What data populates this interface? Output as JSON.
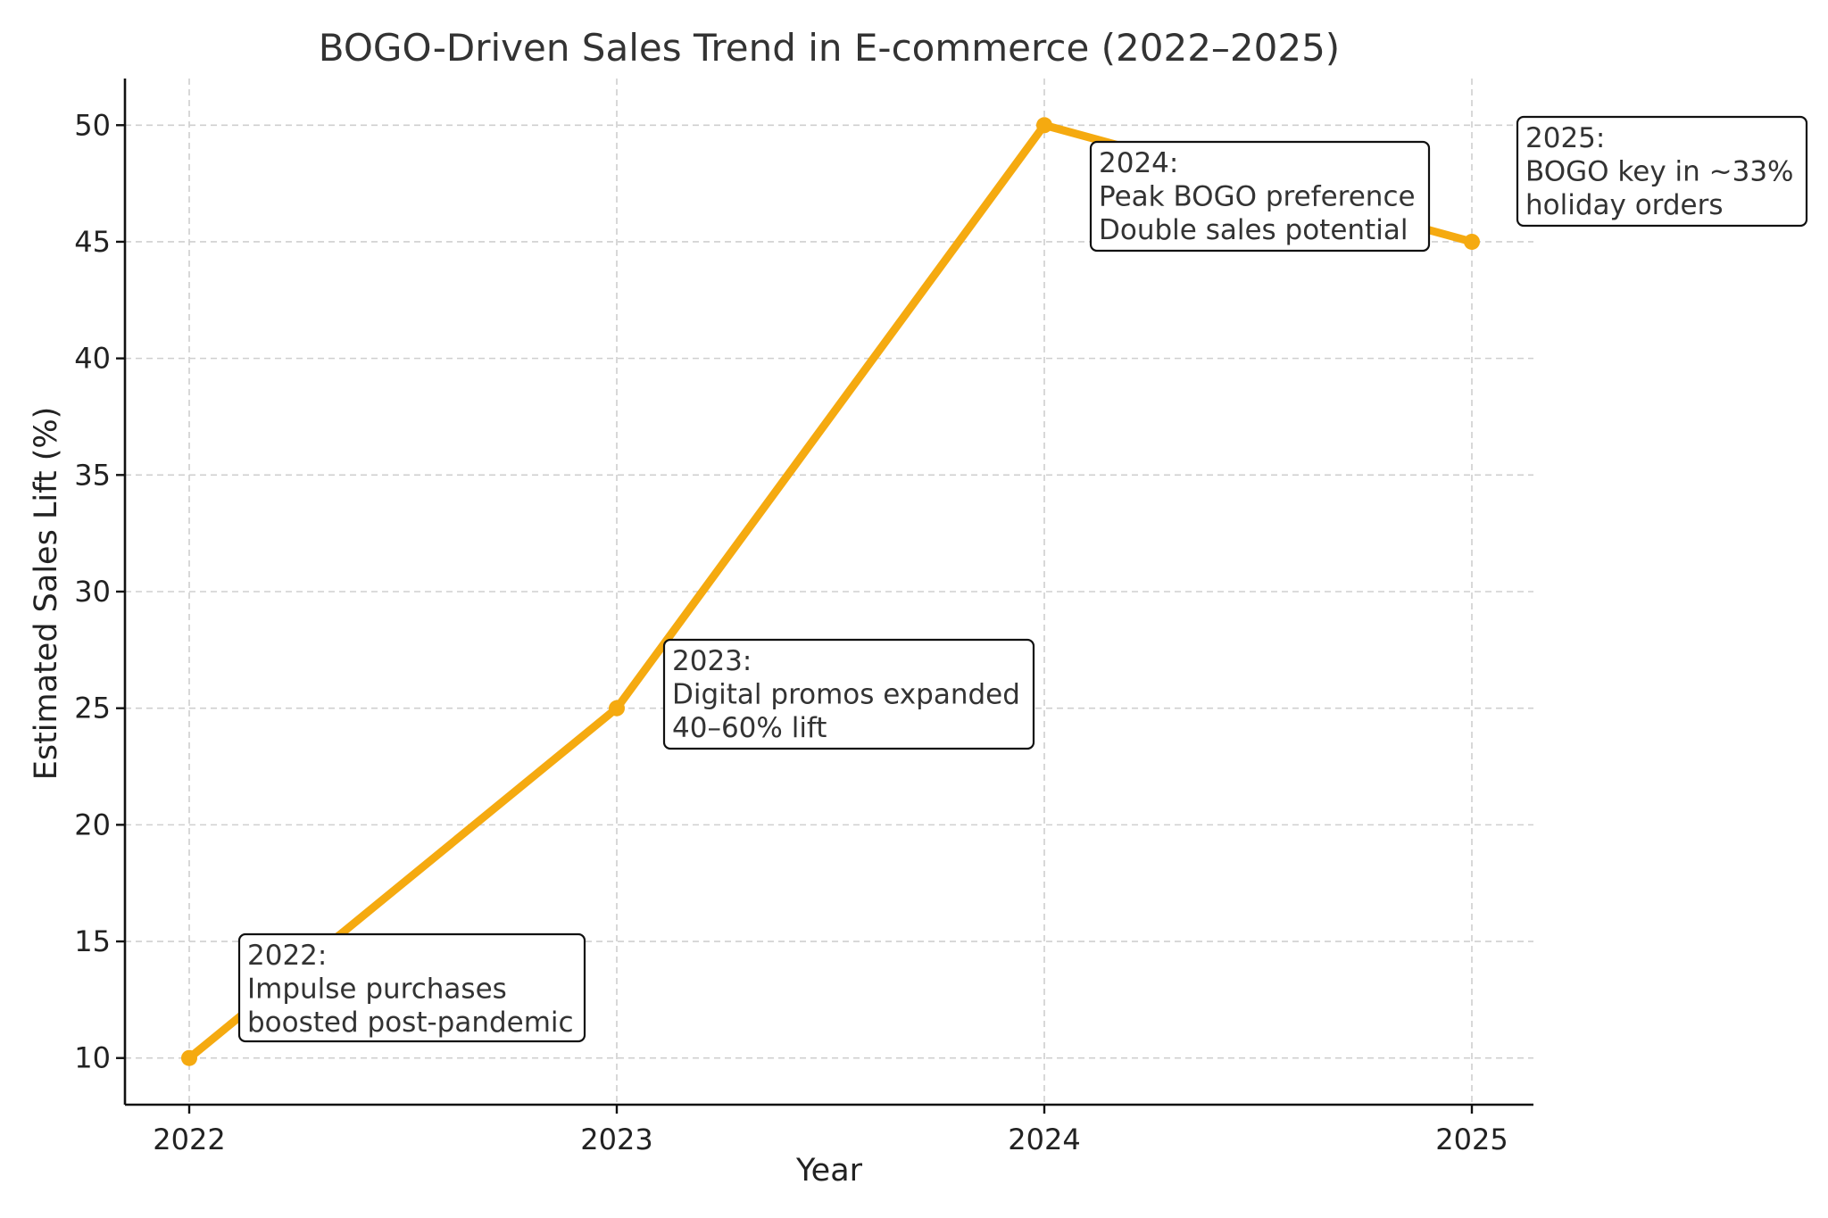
{
  "chart_data": {
    "type": "line",
    "title": "BOGO-Driven Sales Trend in E-commerce (2022–2025)",
    "xlabel": "Year",
    "ylabel": "Estimated Sales Lift (%)",
    "x": [
      "2022",
      "2023",
      "2024",
      "2025"
    ],
    "y": [
      10,
      25,
      50,
      45
    ],
    "yticks": [
      "10",
      "15",
      "20",
      "25",
      "30",
      "35",
      "40",
      "45",
      "50"
    ],
    "ylim": [
      8,
      52
    ],
    "grid": true,
    "line_color": "#F5AA10",
    "annotations": [
      {
        "x": "2022",
        "lines": [
          "2022:",
          "Impulse purchases",
          "boosted post-pandemic"
        ]
      },
      {
        "x": "2023",
        "lines": [
          "2023:",
          "Digital promos expanded",
          "40–60% lift"
        ]
      },
      {
        "x": "2024",
        "lines": [
          "2024:",
          "Peak BOGO preference",
          "Double sales potential"
        ]
      },
      {
        "x": "2025",
        "lines": [
          "2025:",
          "BOGO key in ~33%",
          "holiday orders"
        ]
      }
    ]
  }
}
